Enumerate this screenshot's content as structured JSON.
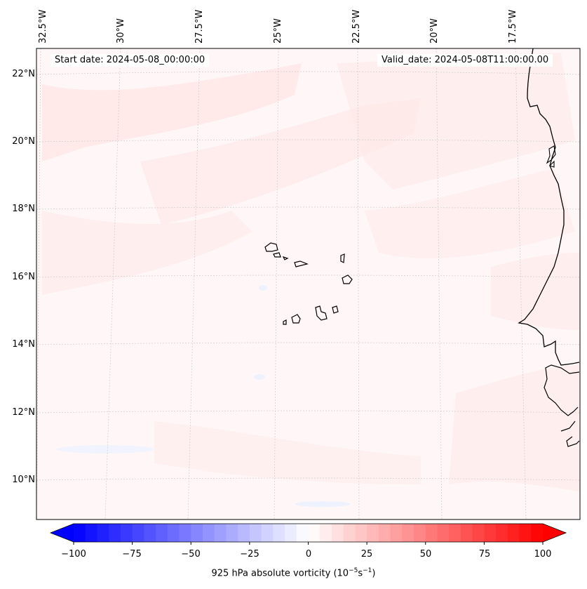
{
  "map": {
    "info": {
      "start_date": "Start date: 2024-05-08_00:00:00",
      "valid_date": "Valid_date: 2024-05-08T11:00:00.00"
    },
    "lon_labels": [
      "32.5°W",
      "30°W",
      "27.5°W",
      "25°W",
      "22.5°W",
      "20°W",
      "17.5°W"
    ],
    "lat_labels": [
      "22°N",
      "20°N",
      "18°N",
      "16°N",
      "14°N",
      "12°N",
      "10°N"
    ],
    "field_colors": {
      "background": "#fff7f7",
      "positive": "#ffe8e8",
      "negative": "#f3f6ff",
      "coast": "#000000"
    }
  },
  "colorbar": {
    "label_main": "925 hPa absolute vorticity (10",
    "label_exp1": "−5",
    "label_mid": "s",
    "label_exp2": "−1",
    "label_end": ")",
    "ticks": [
      "−100",
      "−75",
      "−50",
      "−25",
      "0",
      "25",
      "50",
      "75",
      "100"
    ],
    "min": -100,
    "max": 100,
    "step": 5,
    "colors": {
      "neg_end": "#0000ff",
      "pos_end": "#ff0000",
      "center": "#ffffff"
    }
  }
}
